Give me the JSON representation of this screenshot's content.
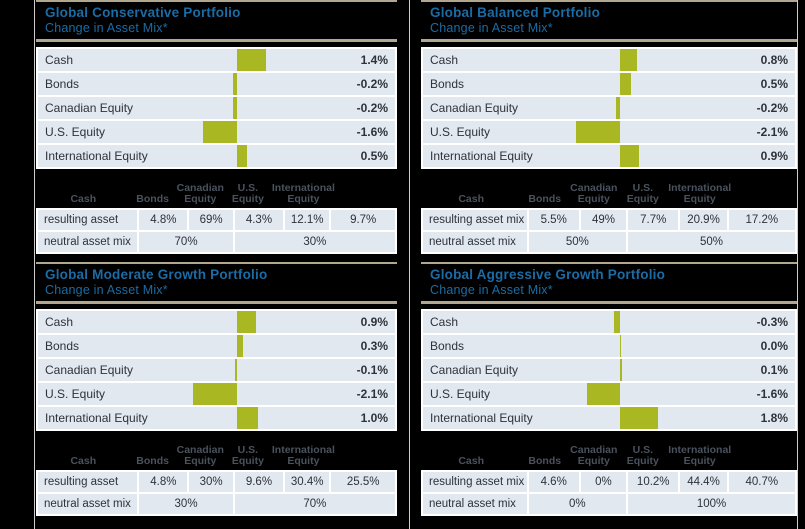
{
  "colors": {
    "background": "#000000",
    "title_blue": "#1b6ca5",
    "rule_tan": "#b1a78f",
    "row_bg": "#e2e8f0",
    "bar_green": "#a9b723",
    "text_dark": "#2e323a",
    "header_text": "#4a525d"
  },
  "chart_data": [
    {
      "type": "bar",
      "orientation": "horizontal",
      "title": "Global Conservative Portfolio",
      "subtitle": "Change in Asset Mix*",
      "categories": [
        "Cash",
        "Bonds",
        "Canadian Equity",
        "U.S. Equity",
        "International Equity"
      ],
      "values": [
        1.4,
        -0.2,
        -0.2,
        -1.6,
        0.5
      ],
      "value_labels": [
        "1.4%",
        "-0.2%",
        "-0.2%",
        "-1.6%",
        "0.5%"
      ],
      "layout": {
        "zero_frac": 0.557,
        "frac_per_pct": 0.0588,
        "grid": false
      },
      "table": {
        "column_headers": [
          "Cash",
          "Bonds",
          "Canadian Equity",
          "U.S. Equity",
          "International Equity"
        ],
        "resulting_row": {
          "label": "resulting asset mix",
          "values": [
            "4.8%",
            "69%",
            "4.3%",
            "12.1%",
            "9.7%"
          ]
        },
        "neutral_row": {
          "label": "neutral asset mix",
          "cells": [
            {
              "span": 2,
              "value": "70%"
            },
            {
              "span": 3,
              "value": "30%"
            }
          ]
        }
      }
    },
    {
      "type": "bar",
      "orientation": "horizontal",
      "title": "Global Balanced Portfolio",
      "subtitle": "Change in Asset Mix*",
      "categories": [
        "Cash",
        "Bonds",
        "Canadian Equity",
        "U.S. Equity",
        "International Equity"
      ],
      "values": [
        0.8,
        0.5,
        -0.2,
        -2.1,
        0.9
      ],
      "value_labels": [
        "0.8%",
        "0.5%",
        "-0.2%",
        "-2.1%",
        "0.9%"
      ],
      "layout": {
        "zero_frac": 0.53,
        "frac_per_pct": 0.0565,
        "grid": false
      },
      "table": {
        "column_headers": [
          "Cash",
          "Bonds",
          "Canadian Equity",
          "U.S. Equity",
          "International Equity"
        ],
        "resulting_row": {
          "label": "resulting asset mix",
          "values": [
            "5.5%",
            "49%",
            "7.7%",
            "20.9%",
            "17.2%"
          ]
        },
        "neutral_row": {
          "label": "neutral asset mix",
          "cells": [
            {
              "span": 2,
              "value": "50%"
            },
            {
              "span": 3,
              "value": "50%"
            }
          ]
        }
      }
    },
    {
      "type": "bar",
      "orientation": "horizontal",
      "title": "Global Moderate Growth Portfolio",
      "subtitle": "Change in Asset Mix*",
      "categories": [
        "Cash",
        "Bonds",
        "Canadian Equity",
        "U.S. Equity",
        "International Equity"
      ],
      "values": [
        0.9,
        0.3,
        -0.1,
        -2.1,
        1.0
      ],
      "value_labels": [
        "0.9%",
        "0.3%",
        "-0.1%",
        "-2.1%",
        "1.0%"
      ],
      "layout": {
        "zero_frac": 0.557,
        "frac_per_pct": 0.0588,
        "grid": false
      },
      "table": {
        "column_headers": [
          "Cash",
          "Bonds",
          "Canadian Equity",
          "U.S. Equity",
          "International Equity"
        ],
        "resulting_row": {
          "label": "resulting asset mix",
          "values": [
            "4.8%",
            "30%",
            "9.6%",
            "30.4%",
            "25.5%"
          ]
        },
        "neutral_row": {
          "label": "neutral asset mix",
          "cells": [
            {
              "span": 2,
              "value": "30%"
            },
            {
              "span": 3,
              "value": "70%"
            }
          ]
        }
      }
    },
    {
      "type": "bar",
      "orientation": "horizontal",
      "title": "Global Aggressive Growth Portfolio",
      "subtitle": "Change in Asset Mix*",
      "categories": [
        "Cash",
        "Bonds",
        "Canadian Equity",
        "U.S. Equity",
        "International Equity"
      ],
      "values": [
        -0.3,
        0.0,
        0.1,
        -1.6,
        1.8
      ],
      "value_labels": [
        "-0.3%",
        "0.0%",
        "0.1%",
        "-1.6%",
        "1.8%"
      ],
      "layout": {
        "zero_frac": 0.53,
        "frac_per_pct": 0.0565,
        "grid": false
      },
      "table": {
        "column_headers": [
          "Cash",
          "Bonds",
          "Canadian Equity",
          "U.S. Equity",
          "International Equity"
        ],
        "resulting_row": {
          "label": "resulting asset mix",
          "values": [
            "4.6%",
            "0%",
            "10.2%",
            "44.4%",
            "40.7%"
          ]
        },
        "neutral_row": {
          "label": "neutral asset mix",
          "cells": [
            {
              "span": 2,
              "value": "0%"
            },
            {
              "span": 3,
              "value": "100%"
            }
          ]
        }
      }
    }
  ]
}
